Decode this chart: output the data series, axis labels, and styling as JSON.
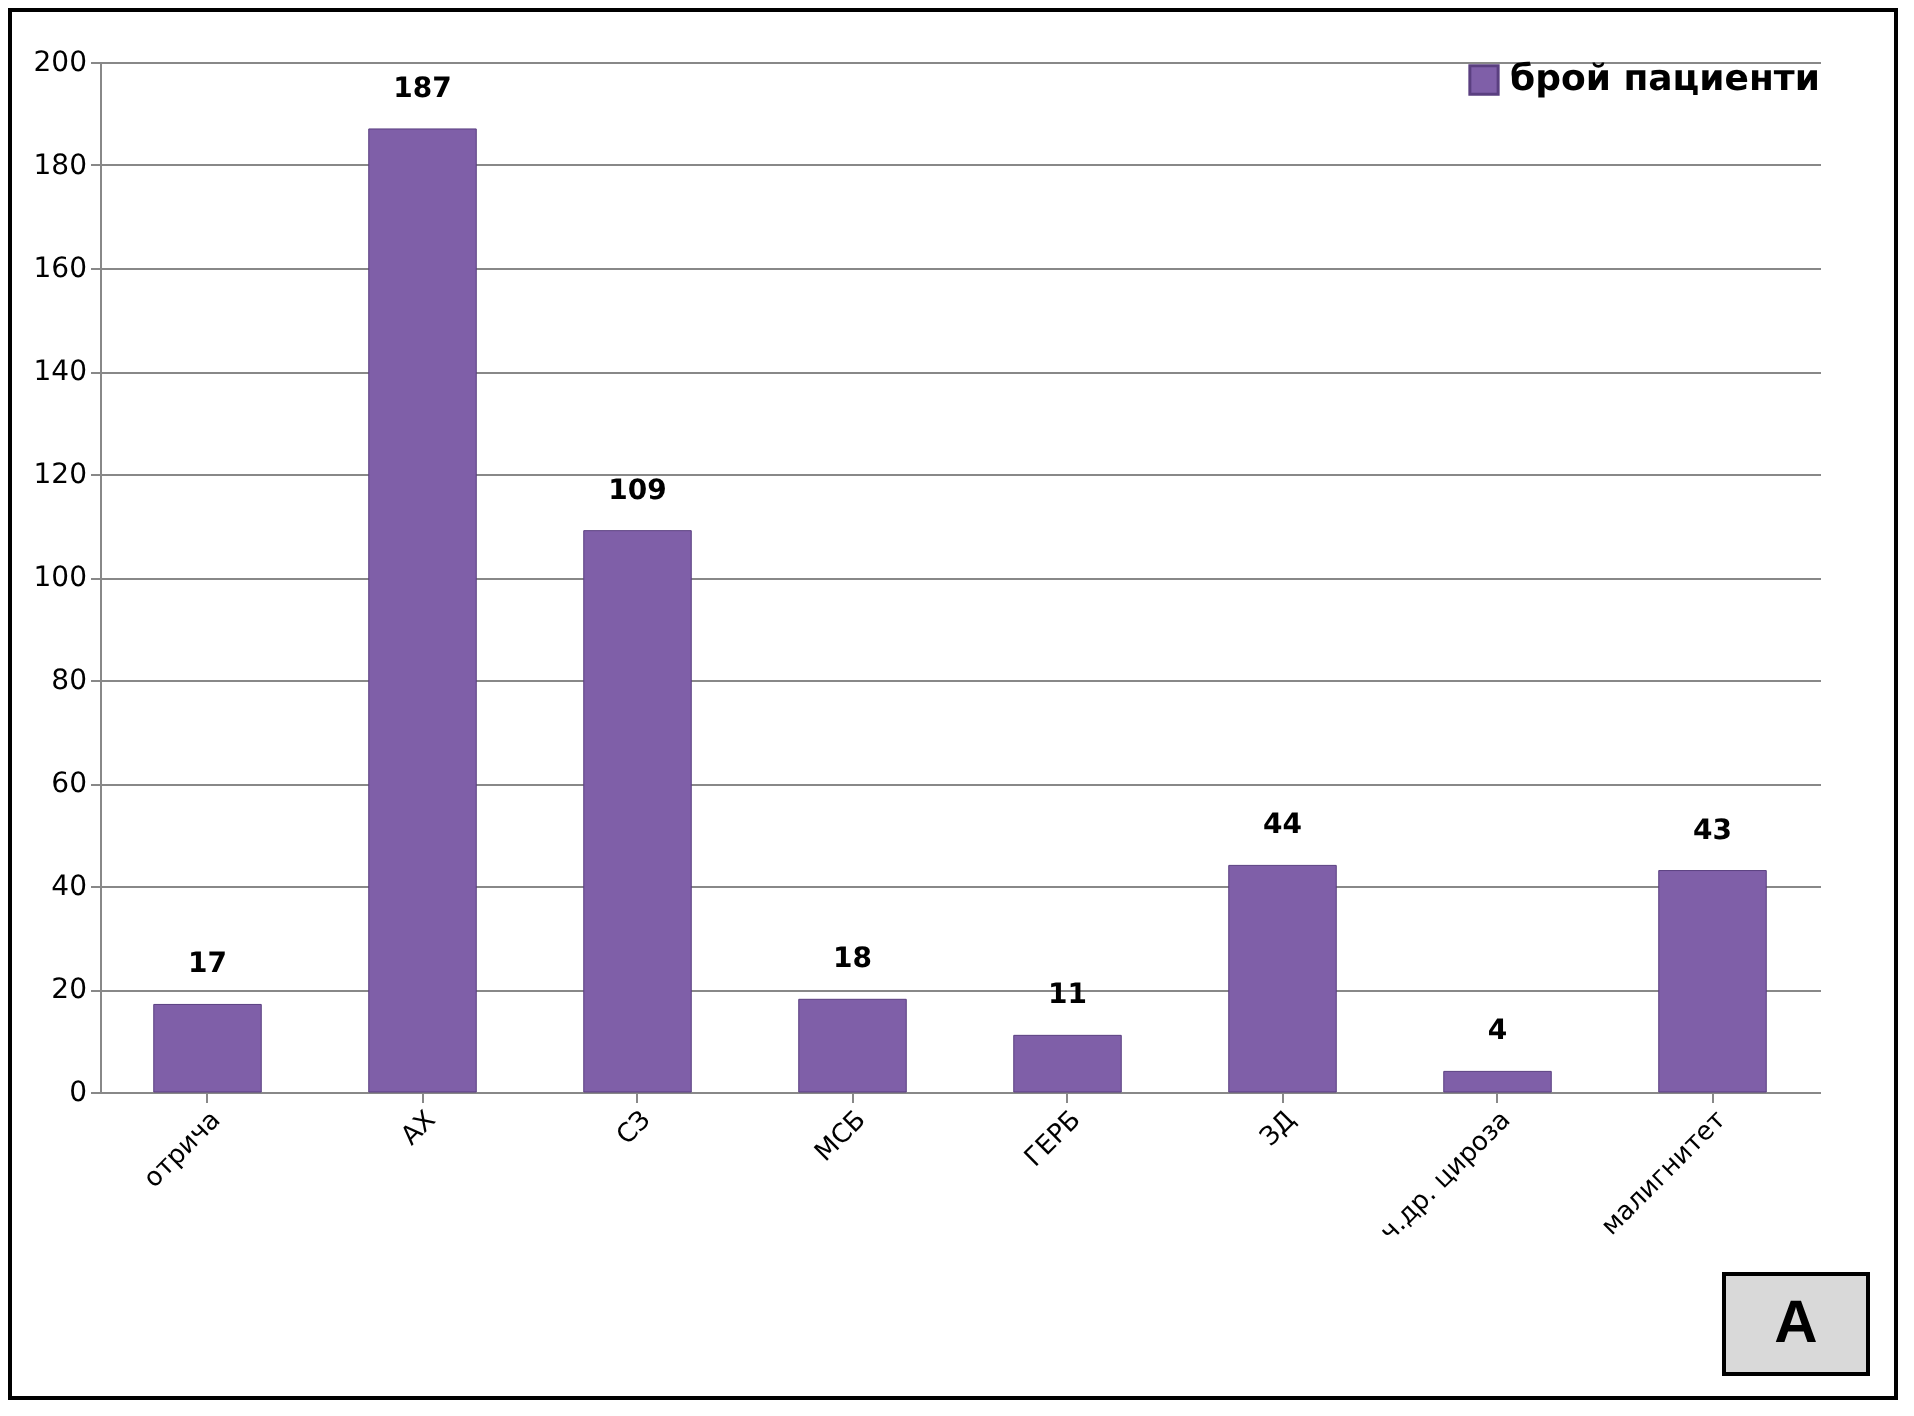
{
  "chart_data": {
    "type": "bar",
    "categories": [
      "отрича",
      "АХ",
      "СЗ",
      "МСБ",
      "ГЕРБ",
      "ЗД",
      "ч.др. цироза",
      "малигнитет"
    ],
    "series": [
      {
        "name": "брой пациенти",
        "color": "#7f5fa8",
        "values": [
          17,
          187,
          109,
          18,
          11,
          44,
          4,
          43
        ]
      }
    ],
    "ylim": [
      0,
      200
    ],
    "yticks": [
      0,
      20,
      40,
      60,
      80,
      100,
      120,
      140,
      160,
      180,
      200
    ],
    "grid": "y",
    "legend": "top right",
    "data_labels": true,
    "annotations": [
      "A"
    ]
  }
}
